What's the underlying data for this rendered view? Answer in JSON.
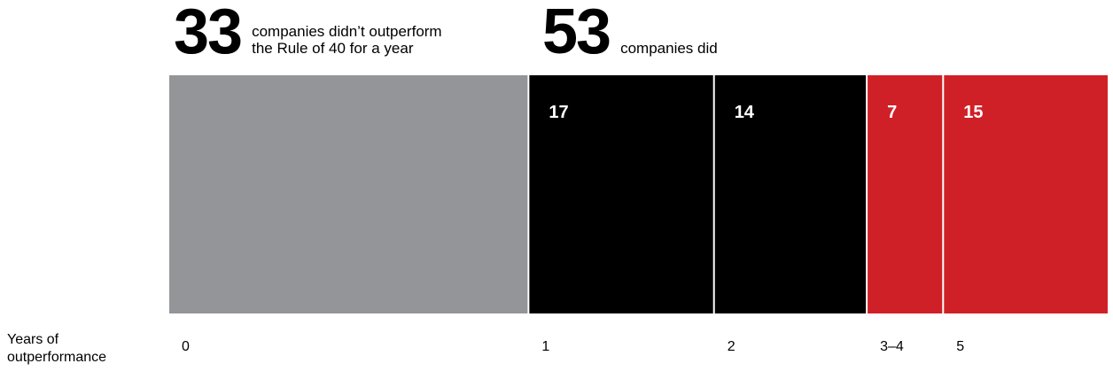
{
  "headline": {
    "left": {
      "number": "33",
      "text": "companies didn’t outperform\nthe Rule of 40 for a year"
    },
    "right": {
      "number": "53",
      "text": "companies did"
    }
  },
  "axis_title": "Years of\noutperformance",
  "colors": {
    "gray": "#939598",
    "black": "#000000",
    "red": "#d02027"
  },
  "chart_data": {
    "type": "bar",
    "orientation": "horizontal-stacked",
    "categories": [
      "0",
      "1",
      "2",
      "3–4",
      "5"
    ],
    "values": [
      33,
      17,
      14,
      7,
      15
    ],
    "data_labels": [
      "",
      "17",
      "14",
      "7",
      "15"
    ],
    "colors": [
      "#939598",
      "#000000",
      "#000000",
      "#d02027",
      "#d02027"
    ],
    "xlabel": "Years of outperformance",
    "ylabel": "",
    "total": 86
  }
}
